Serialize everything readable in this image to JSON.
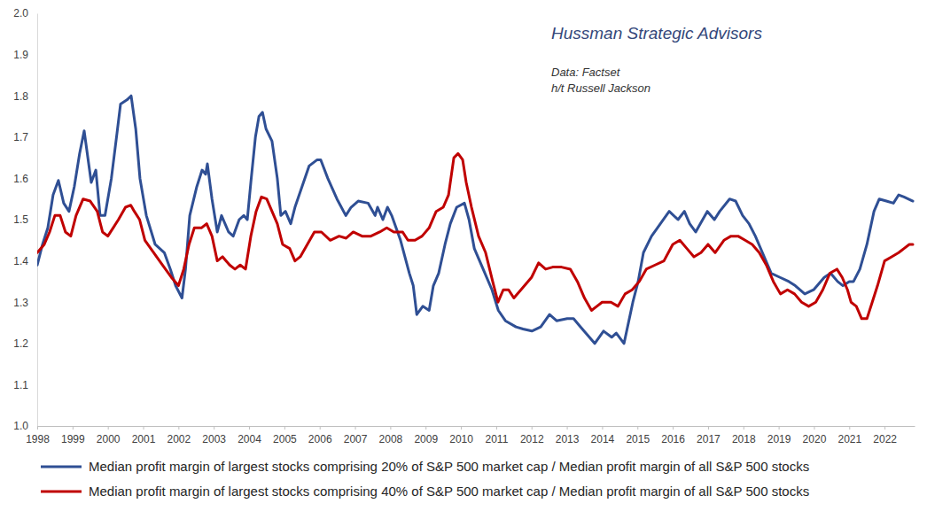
{
  "chart_data": {
    "type": "line",
    "title": "Hussman Strategic Advisors",
    "annotations": [
      "Data: Factset",
      "h/t Russell Jackson"
    ],
    "xlim": [
      1998,
      2022.85
    ],
    "xticks": [
      1998,
      1999,
      2000,
      2001,
      2002,
      2003,
      2004,
      2005,
      2006,
      2007,
      2008,
      2009,
      2010,
      2011,
      2012,
      2013,
      2014,
      2015,
      2016,
      2017,
      2018,
      2019,
      2020,
      2021,
      2022
    ],
    "ylim": [
      1,
      2
    ],
    "yticks": [
      {
        "value": 1,
        "label": "1.0"
      },
      1.1,
      1.2,
      1.3,
      1.4,
      1.5,
      1.6,
      1.7,
      1.8,
      1.9,
      {
        "value": 2,
        "label": "2.0"
      }
    ],
    "grid": false,
    "legend": "bottom",
    "series": [
      {
        "name": "Median profit margin of largest stocks comprising 20% of S&P 500 market cap / Median profit margin of all S&P 500 stocks",
        "color": "#2f4f94",
        "x": [
          1998.0,
          1998.15,
          1998.3,
          1998.45,
          1998.6,
          1998.75,
          1998.9,
          1999.05,
          1999.2,
          1999.33,
          1999.45,
          1999.53,
          1999.66,
          1999.78,
          1999.92,
          2000.1,
          2000.26,
          2000.36,
          2000.54,
          2000.66,
          2000.79,
          2000.91,
          2001.09,
          2001.34,
          2001.6,
          2001.77,
          2001.92,
          2002.1,
          2002.2,
          2002.32,
          2002.52,
          2002.67,
          2002.77,
          2002.82,
          2002.95,
          2003.1,
          2003.22,
          2003.42,
          2003.55,
          2003.72,
          2003.85,
          2003.95,
          2004.05,
          2004.18,
          2004.28,
          2004.38,
          2004.48,
          2004.65,
          2004.8,
          2004.9,
          2005.03,
          2005.18,
          2005.3,
          2005.5,
          2005.7,
          2005.93,
          2006.03,
          2006.23,
          2006.49,
          2006.74,
          2006.89,
          2007.09,
          2007.37,
          2007.57,
          2007.64,
          2007.79,
          2007.92,
          2008.04,
          2008.29,
          2008.54,
          2008.65,
          2008.75,
          2008.92,
          2009.1,
          2009.22,
          2009.37,
          2009.55,
          2009.7,
          2009.88,
          2010.1,
          2010.23,
          2010.38,
          2010.63,
          2010.88,
          2011.06,
          2011.26,
          2011.56,
          2011.76,
          2012.01,
          2012.26,
          2012.51,
          2012.71,
          2013.01,
          2013.19,
          2013.39,
          2013.59,
          2013.79,
          2014.04,
          2014.27,
          2014.4,
          2014.62,
          2014.77,
          2014.87,
          2015.02,
          2015.17,
          2015.4,
          2015.65,
          2015.9,
          2016.15,
          2016.33,
          2016.48,
          2016.65,
          2016.78,
          2016.98,
          2017.18,
          2017.33,
          2017.61,
          2017.78,
          2017.98,
          2018.16,
          2018.34,
          2018.54,
          2018.79,
          2019.04,
          2019.29,
          2019.47,
          2019.74,
          2019.99,
          2020.29,
          2020.47,
          2020.67,
          2020.82,
          2021.0,
          2021.12,
          2021.3,
          2021.5,
          2021.7,
          2021.85,
          2022.05,
          2022.25,
          2022.4,
          2022.55,
          2022.8
        ],
        "values": [
          1.39,
          1.44,
          1.48,
          1.56,
          1.595,
          1.54,
          1.52,
          1.58,
          1.66,
          1.715,
          1.64,
          1.59,
          1.62,
          1.51,
          1.51,
          1.6,
          1.71,
          1.78,
          1.79,
          1.8,
          1.72,
          1.6,
          1.51,
          1.44,
          1.42,
          1.38,
          1.34,
          1.31,
          1.38,
          1.51,
          1.58,
          1.62,
          1.61,
          1.635,
          1.55,
          1.47,
          1.51,
          1.47,
          1.46,
          1.5,
          1.51,
          1.5,
          1.59,
          1.7,
          1.75,
          1.76,
          1.72,
          1.69,
          1.6,
          1.51,
          1.52,
          1.49,
          1.53,
          1.58,
          1.63,
          1.645,
          1.645,
          1.6,
          1.55,
          1.51,
          1.53,
          1.545,
          1.54,
          1.51,
          1.53,
          1.5,
          1.53,
          1.51,
          1.45,
          1.37,
          1.34,
          1.27,
          1.29,
          1.28,
          1.34,
          1.37,
          1.44,
          1.49,
          1.53,
          1.54,
          1.5,
          1.43,
          1.38,
          1.33,
          1.28,
          1.255,
          1.24,
          1.235,
          1.23,
          1.24,
          1.27,
          1.255,
          1.26,
          1.26,
          1.24,
          1.22,
          1.2,
          1.23,
          1.215,
          1.225,
          1.2,
          1.26,
          1.3,
          1.35,
          1.42,
          1.46,
          1.49,
          1.52,
          1.5,
          1.52,
          1.49,
          1.47,
          1.49,
          1.52,
          1.5,
          1.52,
          1.55,
          1.545,
          1.51,
          1.49,
          1.46,
          1.42,
          1.37,
          1.36,
          1.35,
          1.34,
          1.32,
          1.33,
          1.36,
          1.37,
          1.35,
          1.34,
          1.35,
          1.35,
          1.38,
          1.44,
          1.52,
          1.55,
          1.545,
          1.54,
          1.56,
          1.555,
          1.545
        ]
      },
      {
        "name": "Median profit margin of largest stocks comprising 40% of S&P 500 market cap / Median profit margin of all S&P 500 stocks",
        "color": "#c00000",
        "x": [
          1998.0,
          1998.2,
          1998.35,
          1998.5,
          1998.65,
          1998.8,
          1998.95,
          1999.1,
          1999.3,
          1999.5,
          1999.7,
          1999.85,
          2000.0,
          2000.15,
          2000.3,
          2000.5,
          2000.65,
          2000.75,
          2000.9,
          2001.05,
          2001.3,
          2001.55,
          2001.8,
          2002.0,
          2002.15,
          2002.3,
          2002.45,
          2002.65,
          2002.8,
          2002.95,
          2003.1,
          2003.25,
          2003.45,
          2003.6,
          2003.75,
          2003.9,
          2004.05,
          2004.2,
          2004.35,
          2004.5,
          2004.65,
          2004.8,
          2004.95,
          2005.15,
          2005.3,
          2005.45,
          2005.65,
          2005.85,
          2006.05,
          2006.3,
          2006.55,
          2006.75,
          2006.95,
          2007.2,
          2007.45,
          2007.7,
          2007.9,
          2008.1,
          2008.35,
          2008.5,
          2008.7,
          2008.9,
          2009.1,
          2009.3,
          2009.5,
          2009.65,
          2009.8,
          2009.92,
          2010.05,
          2010.15,
          2010.3,
          2010.5,
          2010.7,
          2010.9,
          2011.05,
          2011.2,
          2011.35,
          2011.5,
          2011.7,
          2012.0,
          2012.2,
          2012.4,
          2012.6,
          2012.85,
          2013.1,
          2013.3,
          2013.5,
          2013.7,
          2013.85,
          2014.0,
          2014.25,
          2014.45,
          2014.65,
          2014.85,
          2015.05,
          2015.25,
          2015.5,
          2015.75,
          2016.0,
          2016.2,
          2016.4,
          2016.6,
          2016.8,
          2017.0,
          2017.2,
          2017.45,
          2017.65,
          2017.85,
          2018.05,
          2018.25,
          2018.45,
          2018.65,
          2018.85,
          2019.05,
          2019.25,
          2019.45,
          2019.65,
          2019.85,
          2020.05,
          2020.25,
          2020.45,
          2020.65,
          2020.8,
          2020.95,
          2021.05,
          2021.2,
          2021.35,
          2021.5,
          2021.65,
          2021.8,
          2022.0,
          2022.2,
          2022.4,
          2022.55,
          2022.7,
          2022.8
        ],
        "values": [
          1.42,
          1.44,
          1.47,
          1.51,
          1.51,
          1.47,
          1.46,
          1.51,
          1.55,
          1.545,
          1.52,
          1.47,
          1.46,
          1.48,
          1.5,
          1.53,
          1.535,
          1.52,
          1.5,
          1.45,
          1.42,
          1.39,
          1.36,
          1.34,
          1.38,
          1.44,
          1.48,
          1.48,
          1.49,
          1.46,
          1.4,
          1.41,
          1.39,
          1.38,
          1.39,
          1.38,
          1.46,
          1.52,
          1.555,
          1.55,
          1.52,
          1.49,
          1.44,
          1.43,
          1.4,
          1.41,
          1.44,
          1.47,
          1.47,
          1.45,
          1.46,
          1.455,
          1.47,
          1.46,
          1.46,
          1.47,
          1.48,
          1.47,
          1.47,
          1.45,
          1.45,
          1.46,
          1.48,
          1.52,
          1.53,
          1.56,
          1.65,
          1.66,
          1.645,
          1.59,
          1.53,
          1.46,
          1.42,
          1.35,
          1.3,
          1.33,
          1.33,
          1.31,
          1.33,
          1.36,
          1.395,
          1.38,
          1.385,
          1.385,
          1.38,
          1.35,
          1.31,
          1.28,
          1.29,
          1.3,
          1.3,
          1.29,
          1.32,
          1.33,
          1.35,
          1.38,
          1.39,
          1.4,
          1.44,
          1.45,
          1.43,
          1.41,
          1.42,
          1.44,
          1.42,
          1.45,
          1.46,
          1.46,
          1.45,
          1.44,
          1.42,
          1.39,
          1.35,
          1.32,
          1.33,
          1.32,
          1.3,
          1.29,
          1.3,
          1.33,
          1.37,
          1.38,
          1.36,
          1.33,
          1.3,
          1.29,
          1.26,
          1.26,
          1.3,
          1.34,
          1.4,
          1.41,
          1.42,
          1.43,
          1.44,
          1.44
        ]
      }
    ]
  }
}
